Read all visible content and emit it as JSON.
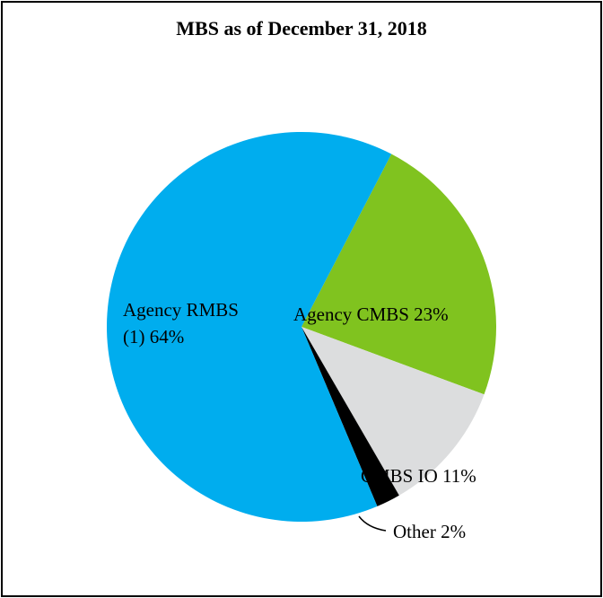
{
  "chart_data": {
    "type": "pie",
    "title": "MBS as of December 31, 2018",
    "slices": [
      {
        "label": "Agency RMBS (1) 64%",
        "label_lines": [
          "Agency RMBS",
          "(1) 64%"
        ],
        "value": 64,
        "color": "#00adee"
      },
      {
        "label": "Agency CMBS 23%",
        "label_lines": [
          "Agency CMBS 23%"
        ],
        "value": 23,
        "color": "#80c31f"
      },
      {
        "label": "CMBS IO 11%",
        "label_lines": [
          "CMBS IO 11%"
        ],
        "value": 11,
        "color": "#dcddde"
      },
      {
        "label": "Other 2%",
        "label_lines": [
          "Other 2%"
        ],
        "value": 2,
        "color": "#000000"
      }
    ]
  }
}
